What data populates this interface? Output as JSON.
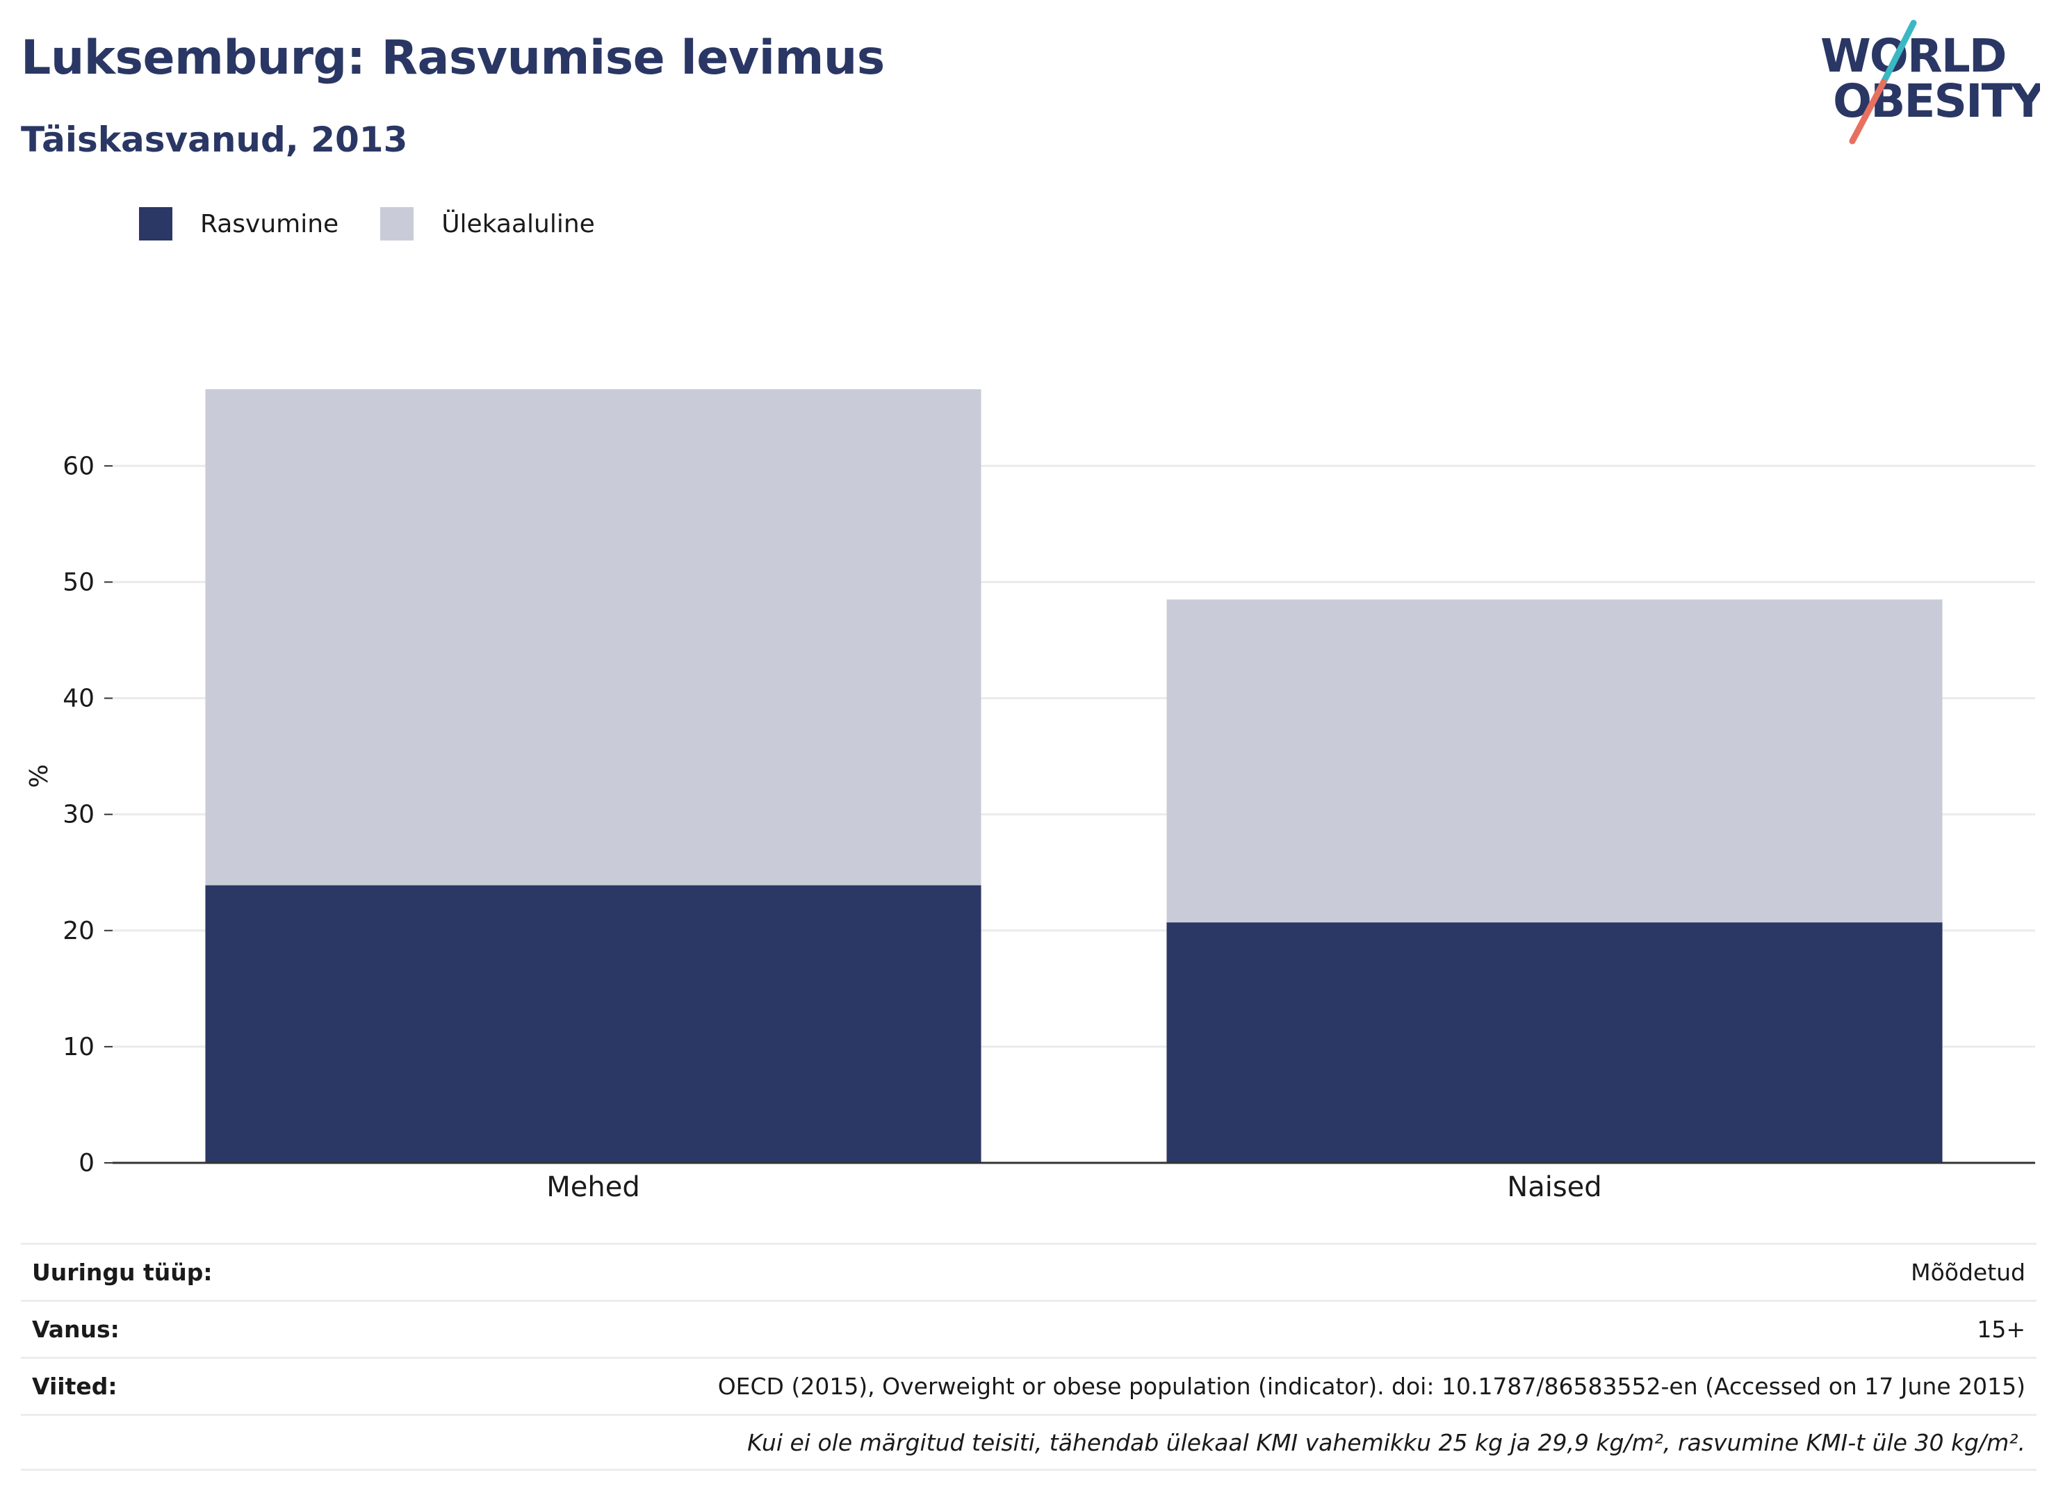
{
  "header": {
    "title": "Luksemburg: Rasvumise levimus",
    "subtitle": "Täiskasvanud, 2013"
  },
  "logo": {
    "line1": "WORLD",
    "line2": "OBESITY",
    "colors": {
      "text": "#2a3764",
      "slash_top": "#3bb8c4",
      "slash_bottom": "#e8705f"
    }
  },
  "legend": [
    {
      "label": "Rasvumine",
      "color": "#2b3764"
    },
    {
      "label": "Ülekaaluline",
      "color": "#c9ccd8"
    }
  ],
  "chart_data": {
    "type": "bar",
    "stacked": true,
    "categories": [
      "Mehed",
      "Naised"
    ],
    "series": [
      {
        "name": "Rasvumine",
        "color": "#2b3764",
        "values": [
          23.9,
          20.7
        ]
      },
      {
        "name": "Ülekaaluline",
        "color": "#c9ccd8",
        "values": [
          42.7,
          27.8
        ]
      }
    ],
    "ylabel": "%",
    "xlabel": "",
    "ylim": [
      0,
      66.6
    ],
    "yticks": [
      0,
      10,
      20,
      30,
      40,
      50,
      60
    ],
    "grid": true,
    "legend_position": "top-left"
  },
  "info": {
    "rows": [
      {
        "label": "Uuringu tüüp:",
        "value": "Mõõdetud"
      },
      {
        "label": "Vanus:",
        "value": "15+"
      },
      {
        "label": "Viited:",
        "value": "OECD (2015), Overweight or obese population (indicator). doi: 10.1787/86583552-en (Accessed on 17 June 2015)"
      }
    ],
    "note": "Kui ei ole märgitud teisiti, tähendab ülekaal KMI vahemikku 25 kg ja 29,9 kg/m², rasvumine KMI-t üle 30 kg/m²."
  }
}
